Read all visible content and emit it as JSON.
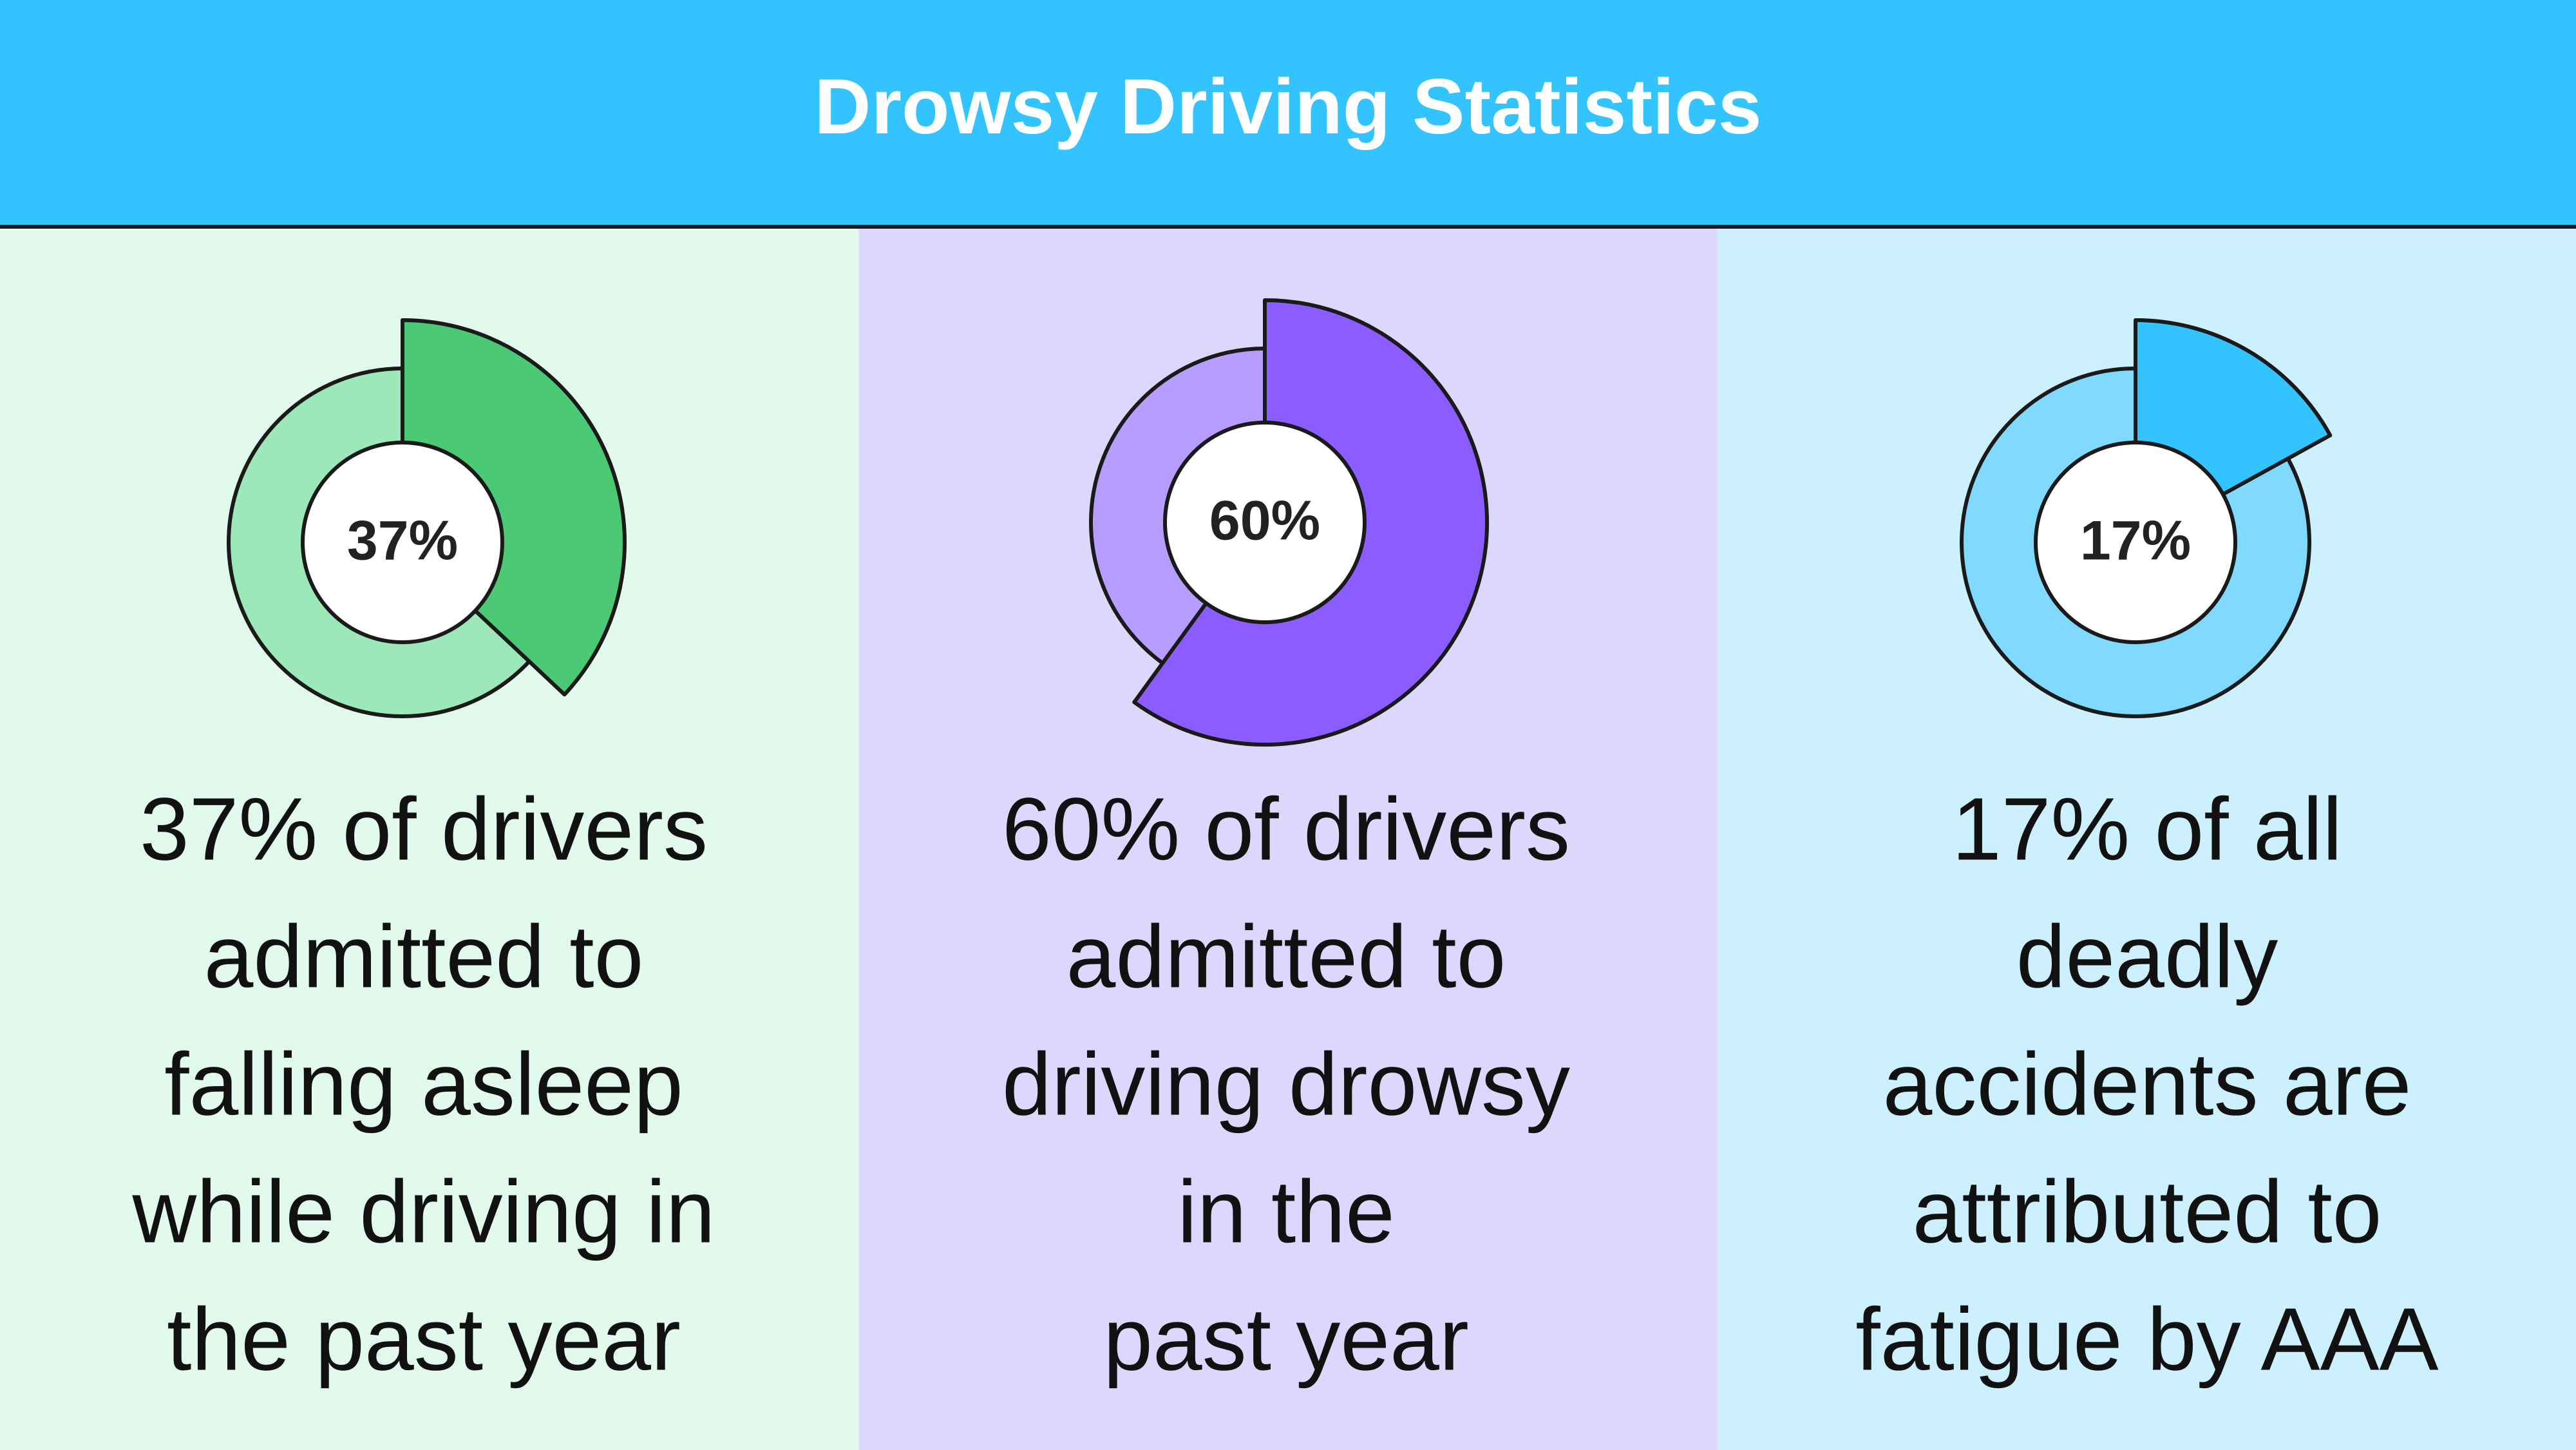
{
  "title": "Drowsy Driving Statistics",
  "chart_data": [
    {
      "type": "donut",
      "values": [
        37
      ],
      "value_labels": [
        "37%"
      ],
      "color": "#4cc974",
      "track_color": "#9de8b8",
      "background": "#e2faee",
      "caption": [
        "37% of drivers",
        "admitted to",
        "falling asleep",
        "while driving in",
        "the past year"
      ]
    },
    {
      "type": "donut",
      "values": [
        60
      ],
      "value_labels": [
        "60%"
      ],
      "color": "#8b5cff",
      "track_color": "#b69dff",
      "background": "#dcd8fd",
      "caption": [
        "60% of drivers",
        "admitted to",
        "driving drowsy",
        "in the",
        "past year"
      ]
    },
    {
      "type": "donut",
      "values": [
        17
      ],
      "value_labels": [
        "17%"
      ],
      "color": "#33c3ff",
      "track_color": "#80d9ff",
      "background": "#cdf0fe",
      "caption": [
        "17% of all",
        "deadly",
        "accidents are",
        "attributed to",
        "fatigue by AAA"
      ]
    }
  ]
}
